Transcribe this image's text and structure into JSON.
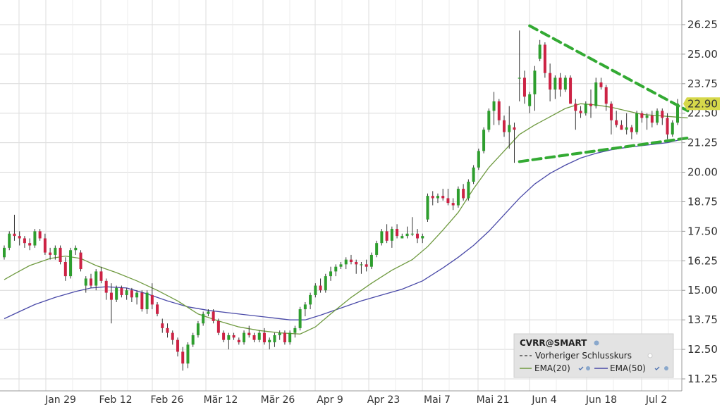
{
  "chart_data": {
    "type": "candlestick",
    "title": "",
    "xlabel": "",
    "ylabel": "",
    "ylim": [
      11.0,
      26.75
    ],
    "yticks": [
      "26.25",
      "25.00",
      "23.75",
      "22.50",
      "21.25",
      "20.00",
      "18.75",
      "17.50",
      "16.25",
      "15.00",
      "13.75",
      "12.50",
      "11.25"
    ],
    "xticks": [
      "Jan 29",
      "Feb 12",
      "Feb 26",
      "Mär 12",
      "Mär 26",
      "Apr 9",
      "Apr 23",
      "Mai 7",
      "Mai 21",
      "Jun 4",
      "Jun 18",
      "Jul 2"
    ],
    "grid": true,
    "last_price": "22.90",
    "colors": {
      "up": "#2e9e2e",
      "down": "#cc2244",
      "ema20": "#6f9a40",
      "ema50": "#4a4aa8",
      "trendline": "#33aa33",
      "price_tag": "#d6d84a"
    },
    "candles": [
      [
        16.4,
        16.9,
        16.3,
        16.8
      ],
      [
        16.8,
        17.5,
        16.7,
        17.4
      ],
      [
        17.4,
        18.2,
        17.1,
        17.3
      ],
      [
        17.3,
        17.5,
        16.9,
        17.2
      ],
      [
        17.2,
        17.3,
        16.8,
        17.0
      ],
      [
        17.0,
        17.2,
        16.7,
        16.9
      ],
      [
        16.9,
        17.6,
        16.8,
        17.5
      ],
      [
        17.5,
        17.6,
        17.1,
        17.2
      ],
      [
        17.2,
        17.4,
        16.5,
        16.6
      ],
      [
        16.6,
        16.8,
        16.3,
        16.5
      ],
      [
        16.5,
        16.9,
        16.3,
        16.8
      ],
      [
        16.8,
        16.9,
        16.1,
        16.2
      ],
      [
        16.2,
        16.4,
        15.4,
        15.6
      ],
      [
        15.6,
        16.8,
        15.5,
        16.7
      ],
      [
        16.7,
        16.9,
        16.5,
        16.8
      ],
      [
        16.6,
        16.7,
        15.8,
        15.9
      ],
      [
        15.2,
        15.6,
        14.9,
        15.5
      ],
      [
        15.5,
        15.7,
        15.1,
        15.2
      ],
      [
        15.2,
        15.9,
        15.0,
        15.8
      ],
      [
        15.8,
        16.0,
        15.3,
        15.4
      ],
      [
        15.4,
        15.5,
        14.6,
        14.9
      ],
      [
        14.9,
        15.3,
        13.6,
        14.6
      ],
      [
        14.6,
        15.2,
        14.5,
        15.1
      ],
      [
        15.1,
        15.2,
        14.7,
        14.8
      ],
      [
        14.8,
        15.1,
        14.6,
        15.0
      ],
      [
        15.0,
        15.1,
        14.5,
        14.7
      ],
      [
        14.7,
        15.0,
        14.4,
        14.9
      ],
      [
        14.9,
        15.0,
        14.1,
        14.2
      ],
      [
        14.2,
        15.0,
        14.0,
        14.9
      ],
      [
        14.8,
        15.3,
        14.2,
        14.4
      ],
      [
        14.4,
        14.5,
        13.9,
        14.0
      ],
      [
        13.6,
        13.8,
        13.2,
        13.4
      ],
      [
        13.4,
        13.6,
        13.0,
        13.2
      ],
      [
        13.2,
        13.3,
        12.7,
        12.9
      ],
      [
        12.9,
        13.0,
        12.2,
        12.4
      ],
      [
        12.4,
        12.6,
        11.6,
        11.9
      ],
      [
        11.9,
        12.8,
        11.7,
        12.7
      ],
      [
        12.7,
        13.2,
        12.6,
        13.1
      ],
      [
        13.1,
        13.7,
        13.0,
        13.6
      ],
      [
        13.6,
        14.1,
        13.5,
        14.0
      ],
      [
        14.0,
        14.2,
        13.9,
        14.1
      ],
      [
        14.1,
        14.2,
        13.6,
        13.7
      ],
      [
        13.7,
        13.8,
        13.1,
        13.2
      ],
      [
        13.2,
        13.3,
        12.8,
        12.9
      ],
      [
        12.9,
        13.2,
        12.5,
        13.1
      ],
      [
        13.1,
        13.2,
        12.9,
        13.0
      ],
      [
        12.9,
        13.0,
        12.7,
        12.8
      ],
      [
        12.8,
        13.3,
        12.7,
        13.2
      ],
      [
        13.2,
        13.5,
        13.0,
        13.1
      ],
      [
        13.1,
        13.2,
        12.8,
        12.9
      ],
      [
        12.9,
        13.3,
        12.8,
        13.2
      ],
      [
        13.2,
        13.4,
        12.7,
        12.8
      ],
      [
        12.8,
        13.0,
        12.5,
        12.9
      ],
      [
        12.8,
        13.2,
        12.6,
        13.1
      ],
      [
        13.1,
        13.3,
        12.9,
        13.2
      ],
      [
        13.2,
        13.3,
        12.7,
        12.8
      ],
      [
        12.8,
        13.3,
        12.7,
        13.2
      ],
      [
        13.2,
        13.5,
        13.0,
        13.4
      ],
      [
        13.4,
        14.3,
        13.3,
        14.2
      ],
      [
        14.2,
        14.5,
        13.9,
        14.4
      ],
      [
        14.4,
        14.9,
        14.2,
        14.8
      ],
      [
        14.8,
        15.3,
        14.7,
        15.2
      ],
      [
        15.2,
        15.5,
        14.9,
        15.0
      ],
      [
        15.0,
        15.7,
        14.9,
        15.6
      ],
      [
        15.6,
        16.0,
        15.4,
        15.8
      ],
      [
        15.8,
        16.1,
        15.6,
        16.0
      ],
      [
        16.0,
        16.2,
        15.9,
        16.1
      ],
      [
        16.1,
        16.4,
        15.9,
        16.3
      ],
      [
        16.3,
        16.5,
        16.1,
        16.2
      ],
      [
        16.2,
        16.3,
        15.7,
        16.1
      ],
      [
        16.1,
        16.2,
        15.7,
        16.1
      ],
      [
        16.1,
        16.3,
        15.8,
        16.0
      ],
      [
        16.0,
        16.6,
        15.9,
        16.5
      ],
      [
        16.5,
        17.1,
        16.4,
        17.0
      ],
      [
        17.0,
        17.6,
        16.9,
        17.5
      ],
      [
        17.5,
        17.8,
        17.0,
        17.1
      ],
      [
        17.1,
        17.7,
        16.8,
        17.6
      ],
      [
        17.6,
        17.8,
        17.2,
        17.3
      ],
      [
        17.2,
        17.4,
        17.2,
        17.3
      ],
      [
        17.3,
        17.7,
        17.2,
        17.4
      ],
      [
        17.4,
        18.1,
        17.3,
        17.4
      ],
      [
        17.4,
        17.6,
        17.0,
        17.2
      ],
      [
        17.2,
        17.4,
        17.0,
        17.3
      ],
      [
        18.0,
        19.1,
        17.9,
        19.0
      ],
      [
        19.0,
        19.2,
        18.6,
        18.9
      ],
      [
        18.9,
        19.1,
        18.7,
        19.0
      ],
      [
        19.0,
        19.3,
        18.8,
        18.9
      ],
      [
        18.9,
        19.3,
        18.6,
        18.7
      ],
      [
        18.7,
        18.9,
        18.4,
        18.6
      ],
      [
        18.6,
        19.4,
        18.5,
        19.3
      ],
      [
        19.3,
        19.5,
        18.8,
        18.9
      ],
      [
        18.9,
        19.7,
        18.8,
        19.6
      ],
      [
        19.6,
        20.3,
        19.5,
        20.2
      ],
      [
        20.2,
        21.0,
        20.1,
        20.9
      ],
      [
        20.9,
        21.9,
        20.8,
        21.8
      ],
      [
        21.8,
        22.7,
        21.7,
        22.6
      ],
      [
        22.6,
        23.4,
        22.0,
        23.0
      ],
      [
        23.0,
        23.1,
        22.0,
        22.2
      ],
      [
        22.2,
        22.4,
        21.5,
        21.7
      ],
      [
        21.7,
        22.8,
        21.0,
        22.0
      ],
      [
        21.9,
        22.1,
        20.4,
        21.8
      ],
      [
        24.0,
        26.0,
        23.0,
        24.0
      ],
      [
        24.0,
        24.3,
        22.9,
        23.2
      ],
      [
        22.8,
        23.4,
        22.5,
        23.3
      ],
      [
        23.3,
        24.5,
        22.6,
        24.3
      ],
      [
        24.8,
        25.6,
        24.7,
        25.4
      ],
      [
        25.4,
        25.5,
        24.0,
        24.2
      ],
      [
        24.2,
        24.6,
        23.0,
        23.5
      ],
      [
        23.5,
        24.1,
        23.1,
        24.0
      ],
      [
        24.0,
        24.2,
        23.2,
        23.5
      ],
      [
        23.5,
        24.1,
        23.4,
        24.0
      ],
      [
        24.0,
        24.1,
        22.9,
        22.9
      ],
      [
        22.9,
        23.1,
        21.8,
        22.6
      ],
      [
        22.6,
        22.8,
        22.3,
        22.5
      ],
      [
        22.5,
        23.0,
        22.4,
        22.9
      ],
      [
        22.9,
        23.5,
        22.3,
        22.8
      ],
      [
        22.8,
        24.0,
        22.7,
        23.8
      ],
      [
        23.8,
        24.0,
        23.5,
        23.6
      ],
      [
        23.6,
        23.7,
        22.6,
        22.9
      ],
      [
        22.9,
        23.0,
        21.6,
        22.2
      ],
      [
        22.2,
        22.6,
        21.9,
        22.0
      ],
      [
        22.0,
        22.2,
        21.8,
        21.8
      ],
      [
        21.8,
        22.5,
        21.6,
        21.9
      ],
      [
        21.9,
        22.0,
        21.4,
        21.7
      ],
      [
        21.7,
        22.6,
        21.6,
        22.5
      ],
      [
        22.5,
        22.6,
        22.1,
        22.3
      ],
      [
        22.3,
        22.5,
        21.8,
        22.4
      ],
      [
        22.4,
        22.6,
        21.9,
        22.1
      ],
      [
        22.1,
        22.7,
        22.0,
        22.6
      ],
      [
        22.6,
        22.7,
        22.0,
        22.3
      ],
      [
        22.3,
        22.5,
        21.4,
        21.6
      ],
      [
        21.6,
        22.2,
        21.5,
        22.1
      ],
      [
        22.1,
        23.1,
        22.0,
        22.9
      ]
    ],
    "ema20": [
      [
        0,
        15.45
      ],
      [
        2,
        15.7
      ],
      [
        5,
        16.05
      ],
      [
        9,
        16.35
      ],
      [
        12,
        16.45
      ],
      [
        15,
        16.35
      ],
      [
        18,
        16.05
      ],
      [
        22,
        15.75
      ],
      [
        26,
        15.4
      ],
      [
        30,
        15.0
      ],
      [
        34,
        14.55
      ],
      [
        38,
        14.0
      ],
      [
        42,
        13.7
      ],
      [
        46,
        13.45
      ],
      [
        50,
        13.3
      ],
      [
        54,
        13.2
      ],
      [
        58,
        13.15
      ],
      [
        61,
        13.45
      ],
      [
        64,
        14.0
      ],
      [
        68,
        14.7
      ],
      [
        72,
        15.3
      ],
      [
        76,
        15.85
      ],
      [
        80,
        16.3
      ],
      [
        83,
        16.85
      ],
      [
        86,
        17.55
      ],
      [
        89,
        18.3
      ],
      [
        92,
        19.3
      ],
      [
        95,
        20.2
      ],
      [
        98,
        20.9
      ],
      [
        101,
        21.6
      ],
      [
        104,
        22.0
      ],
      [
        107,
        22.35
      ],
      [
        110,
        22.7
      ],
      [
        113,
        22.9
      ],
      [
        116,
        22.85
      ],
      [
        119,
        22.75
      ],
      [
        122,
        22.6
      ],
      [
        125,
        22.45
      ],
      [
        128,
        22.4
      ],
      [
        131,
        22.35
      ],
      [
        134,
        22.3
      ]
    ],
    "ema50": [
      [
        0,
        13.8
      ],
      [
        3,
        14.1
      ],
      [
        6,
        14.4
      ],
      [
        10,
        14.7
      ],
      [
        14,
        14.95
      ],
      [
        17,
        15.1
      ],
      [
        20,
        15.15
      ],
      [
        24,
        15.1
      ],
      [
        28,
        14.85
      ],
      [
        32,
        14.55
      ],
      [
        36,
        14.3
      ],
      [
        40,
        14.15
      ],
      [
        44,
        14.05
      ],
      [
        48,
        13.95
      ],
      [
        52,
        13.85
      ],
      [
        56,
        13.75
      ],
      [
        59,
        13.75
      ],
      [
        62,
        13.95
      ],
      [
        66,
        14.25
      ],
      [
        70,
        14.55
      ],
      [
        74,
        14.8
      ],
      [
        78,
        15.05
      ],
      [
        82,
        15.4
      ],
      [
        86,
        15.95
      ],
      [
        89,
        16.4
      ],
      [
        92,
        16.9
      ],
      [
        95,
        17.5
      ],
      [
        98,
        18.2
      ],
      [
        101,
        18.9
      ],
      [
        104,
        19.5
      ],
      [
        107,
        19.95
      ],
      [
        110,
        20.3
      ],
      [
        113,
        20.6
      ],
      [
        116,
        20.8
      ],
      [
        119,
        20.95
      ],
      [
        122,
        21.05
      ],
      [
        126,
        21.15
      ],
      [
        130,
        21.25
      ],
      [
        134,
        21.45
      ]
    ],
    "trendlines": [
      {
        "from": [
          103,
          26.2
        ],
        "to": [
          134,
          22.6
        ]
      },
      {
        "from": [
          101,
          20.45
        ],
        "to": [
          134,
          21.45
        ]
      }
    ],
    "legend": {
      "title": "CVRR@SMART",
      "items": [
        "Vorheriger Schlusskurs",
        "EMA(20)",
        "EMA(50)"
      ]
    }
  }
}
